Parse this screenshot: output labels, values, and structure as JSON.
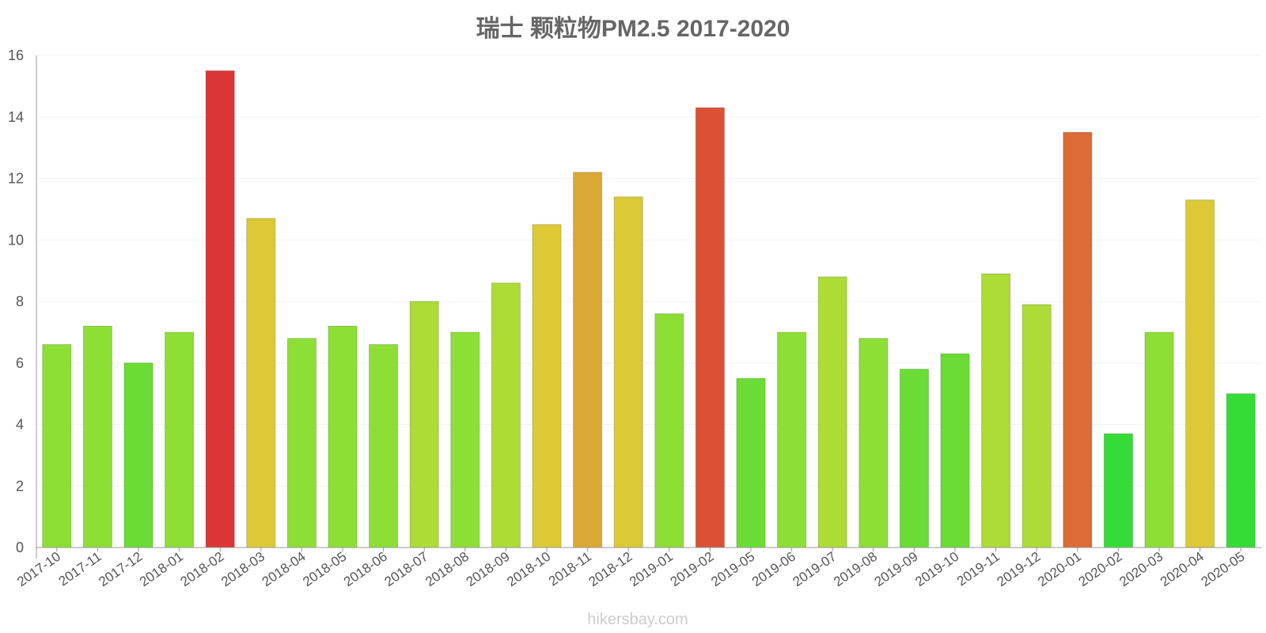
{
  "chart_data": {
    "type": "bar",
    "title": "瑞士 颗粒物PM2.5 2017-2020",
    "xlabel": "",
    "ylabel": "",
    "ylim": [
      0,
      16
    ],
    "yticks": [
      0,
      2,
      4,
      6,
      8,
      10,
      12,
      14,
      16
    ],
    "grid": true,
    "legend": "none",
    "categories": [
      "2017-10",
      "2017-11",
      "2017-12",
      "2018-01",
      "2018-02",
      "2018-03",
      "2018-04",
      "2018-05",
      "2018-06",
      "2018-07",
      "2018-08",
      "2018-09",
      "2018-10",
      "2018-11",
      "2018-12",
      "2019-01",
      "2019-02",
      "2019-05",
      "2019-06",
      "2019-07",
      "2019-08",
      "2019-09",
      "2019-10",
      "2019-11",
      "2019-12",
      "2020-01",
      "2020-02",
      "2020-03",
      "2020-04",
      "2020-05"
    ],
    "values": [
      6.6,
      7.2,
      6.0,
      7.0,
      15.5,
      10.7,
      6.8,
      7.2,
      6.6,
      8.0,
      7.0,
      8.6,
      10.5,
      12.2,
      11.4,
      7.6,
      14.3,
      5.5,
      7.0,
      8.8,
      6.8,
      5.8,
      6.3,
      8.9,
      7.9,
      13.5,
      3.7,
      7.0,
      11.3,
      5.0
    ],
    "colors": [
      "#8ddf35",
      "#8ddf35",
      "#6bdc35",
      "#8ddf35",
      "#dc3535",
      "#dcc935",
      "#8ddf35",
      "#8ddf35",
      "#8ddf35",
      "#acdc35",
      "#8ddf35",
      "#acdc35",
      "#dcc935",
      "#dca835",
      "#dcc935",
      "#8ddf35",
      "#dc5035",
      "#6bdc35",
      "#8ddf35",
      "#acdc35",
      "#8ddf35",
      "#6bdc35",
      "#6bdc35",
      "#acdc35",
      "#acdc35",
      "#dc6c35",
      "#35dc35",
      "#8ddf35",
      "#dcc935",
      "#35dc35"
    ]
  },
  "watermark": "hikersbay.com"
}
